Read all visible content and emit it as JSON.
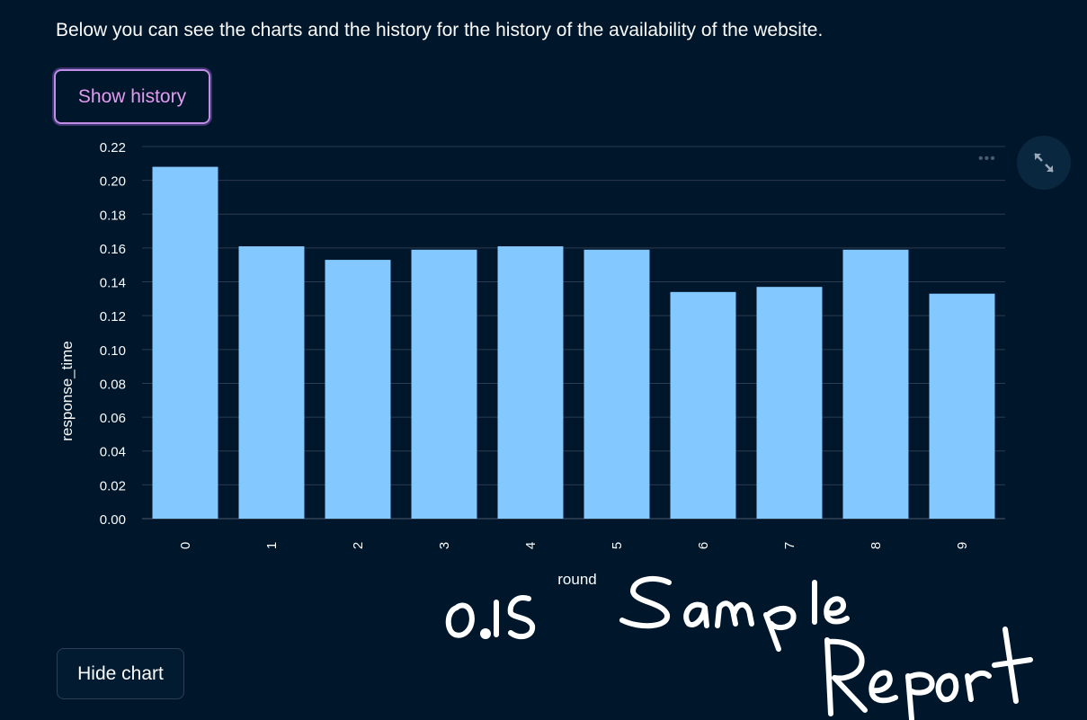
{
  "intro_text": "Below you can see the charts and the history for the history of the availability of the website.",
  "buttons": {
    "show_history": "Show history",
    "hide_chart": "Hide chart"
  },
  "chart_toolbar": {
    "menu_icon": "ellipsis-icon",
    "expand_icon": "fullscreen-expand-icon"
  },
  "colors": {
    "background": "#00172b",
    "bar": "#83c9ff",
    "accent": "#c08ee6",
    "grid": "#2c3b4d"
  },
  "handwriting": {
    "text_1": "0.15",
    "text_2": "Sample",
    "text_3": "Report"
  },
  "chart_data": {
    "type": "bar",
    "title": "",
    "xlabel": "round",
    "ylabel": "response_time",
    "categories": [
      "0",
      "1",
      "2",
      "3",
      "4",
      "5",
      "6",
      "7",
      "8",
      "9"
    ],
    "values": [
      0.208,
      0.161,
      0.153,
      0.159,
      0.161,
      0.159,
      0.134,
      0.137,
      0.159,
      0.133
    ],
    "ylim": [
      0,
      0.22
    ],
    "yticks": [
      "0.00",
      "0.02",
      "0.04",
      "0.06",
      "0.08",
      "0.10",
      "0.12",
      "0.14",
      "0.16",
      "0.18",
      "0.20",
      "0.22"
    ],
    "grid": true,
    "legend": "none"
  }
}
